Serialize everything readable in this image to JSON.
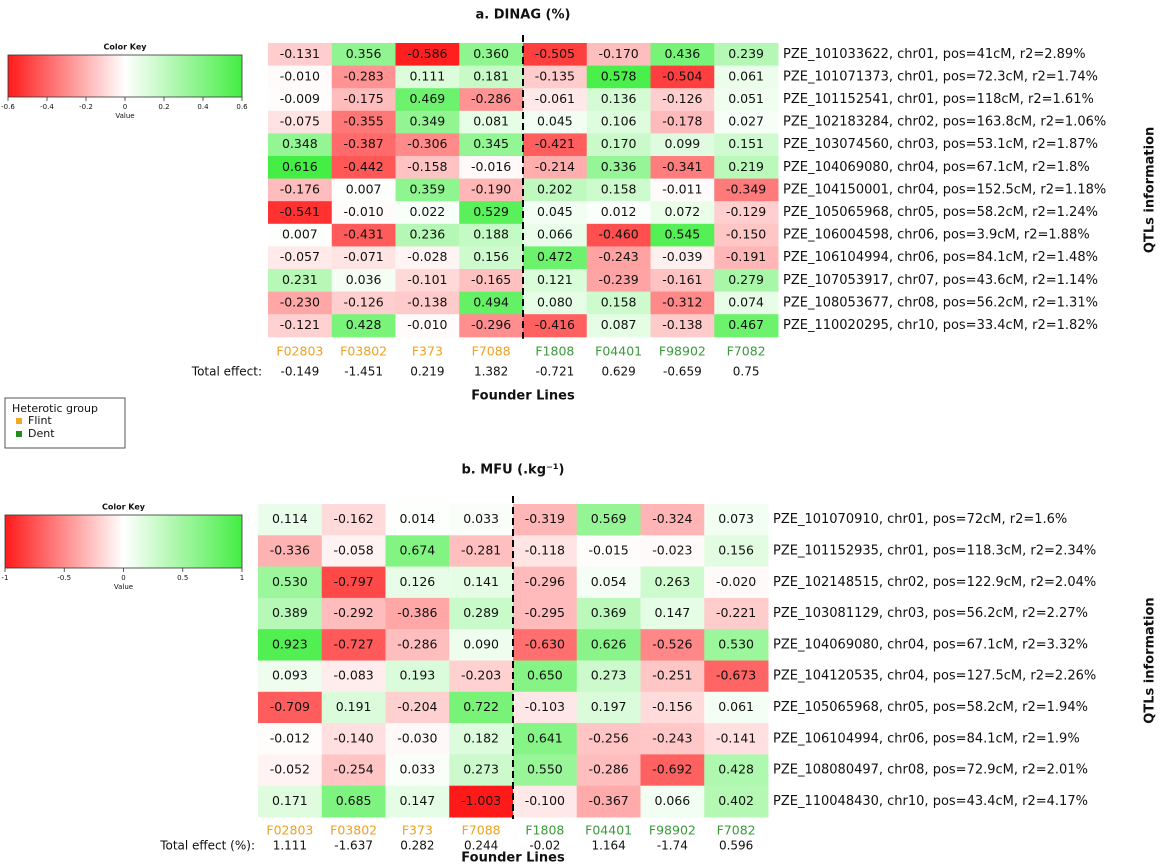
{
  "chart_data": [
    {
      "type": "heatmap",
      "title": "a. DINAG (%)",
      "columns": [
        "F02803",
        "F03802",
        "F373",
        "F7088",
        "F1808",
        "F04401",
        "F98902",
        "F7082"
      ],
      "column_colors": [
        "#f0a020",
        "#f0a020",
        "#f0a020",
        "#f0a020",
        "#3a9a3a",
        "#3a9a3a",
        "#3a9a3a",
        "#3a9a3a"
      ],
      "rows": [
        "PZE_101033622, chr01, pos=41cM, r2=2.89%",
        "PZE_101071373, chr01, pos=72.3cM, r2=1.74%",
        "PZE_101152541, chr01, pos=118cM, r2=1.61%",
        "PZE_102183284, chr02, pos=163.8cM, r2=1.06%",
        "PZE_103074560, chr03, pos=53.1cM, r2=1.87%",
        "PZE_104069080, chr04, pos=67.1cM, r2=1.8%",
        "PZE_104150001, chr04, pos=152.5cM, r2=1.18%",
        "PZE_105065968, chr05, pos=58.2cM, r2=1.24%",
        "PZE_106004598, chr06, pos=3.9cM, r2=1.88%",
        "PZE_106104994, chr06, pos=84.1cM, r2=1.48%",
        "PZE_107053917, chr07, pos=43.6cM, r2=1.14%",
        "PZE_108053677, chr08, pos=56.2cM, r2=1.31%",
        "PZE_110020295, chr10, pos=33.4cM, r2=1.82%"
      ],
      "values": [
        [
          -0.131,
          0.356,
          -0.586,
          0.36,
          -0.505,
          -0.17,
          0.436,
          0.239
        ],
        [
          -0.01,
          -0.283,
          0.111,
          0.181,
          -0.135,
          0.578,
          -0.504,
          0.061
        ],
        [
          -0.009,
          -0.175,
          0.469,
          -0.286,
          -0.061,
          0.136,
          -0.126,
          0.051
        ],
        [
          -0.075,
          -0.355,
          0.349,
          0.081,
          0.045,
          0.106,
          -0.178,
          0.027
        ],
        [
          0.348,
          -0.387,
          -0.306,
          0.345,
          -0.421,
          0.17,
          0.099,
          0.151
        ],
        [
          0.616,
          -0.442,
          -0.158,
          -0.016,
          -0.214,
          0.336,
          -0.341,
          0.219
        ],
        [
          -0.176,
          0.007,
          0.359,
          -0.19,
          0.202,
          0.158,
          -0.011,
          -0.349
        ],
        [
          -0.541,
          -0.01,
          0.022,
          0.529,
          0.045,
          0.012,
          0.072,
          -0.129
        ],
        [
          0.007,
          -0.431,
          0.236,
          0.188,
          0.066,
          -0.46,
          0.545,
          -0.15
        ],
        [
          -0.057,
          -0.071,
          -0.028,
          0.156,
          0.472,
          -0.243,
          -0.039,
          -0.191
        ],
        [
          0.231,
          0.036,
          -0.101,
          -0.165,
          0.121,
          -0.239,
          -0.161,
          0.279
        ],
        [
          -0.23,
          -0.126,
          -0.138,
          0.494,
          0.08,
          0.158,
          -0.312,
          0.074
        ],
        [
          -0.121,
          0.428,
          -0.01,
          -0.296,
          -0.416,
          0.087,
          -0.138,
          0.467
        ]
      ],
      "value_labels": [
        [
          "-0.131",
          "0.356",
          "-0.586",
          "0.360",
          "-0.505",
          "-0.170",
          "0.436",
          "0.239"
        ],
        [
          "-0.010",
          "-0.283",
          "0.111",
          "0.181",
          "-0.135",
          "0.578",
          "-0.504",
          "0.061"
        ],
        [
          "-0.009",
          "-0.175",
          "0.469",
          "-0.286",
          "-0.061",
          "0.136",
          "-0.126",
          "0.051"
        ],
        [
          "-0.075",
          "-0.355",
          "0.349",
          "0.081",
          "0.045",
          "0.106",
          "-0.178",
          "0.027"
        ],
        [
          "0.348",
          "-0.387",
          "-0.306",
          "0.345",
          "-0.421",
          "0.170",
          "0.099",
          "0.151"
        ],
        [
          "0.616",
          "-0.442",
          "-0.158",
          "-0.016",
          "-0.214",
          "0.336",
          "-0.341",
          "0.219"
        ],
        [
          "-0.176",
          "0.007",
          "0.359",
          "-0.190",
          "0.202",
          "0.158",
          "-0.011",
          "-0.349"
        ],
        [
          "-0.541",
          "-0.010",
          "0.022",
          "0.529",
          "0.045",
          "0.012",
          "0.072",
          "-0.129"
        ],
        [
          "0.007",
          "-0.431",
          "0.236",
          "0.188",
          "0.066",
          "-0.460",
          "0.545",
          "-0.150"
        ],
        [
          "-0.057",
          "-0.071",
          "-0.028",
          "0.156",
          "0.472",
          "-0.243",
          "-0.039",
          "-0.191"
        ],
        [
          "0.231",
          "0.036",
          "-0.101",
          "-0.165",
          "0.121",
          "-0.239",
          "-0.161",
          "0.279"
        ],
        [
          "-0.230",
          "-0.126",
          "-0.138",
          "0.494",
          "0.080",
          "0.158",
          "-0.312",
          "0.074"
        ],
        [
          "-0.121",
          "0.428",
          "-0.010",
          "-0.296",
          "-0.416",
          "0.087",
          "-0.138",
          "0.467"
        ]
      ],
      "total_label": "Total effect:",
      "totals": [
        -0.149,
        -1.451,
        0.219,
        1.382,
        -0.721,
        0.629,
        -0.659,
        0.75
      ],
      "xlabel": "Founder Lines",
      "ylabel": "QTLs information",
      "colormap": [
        "#ff1a1a",
        "#ffffff",
        "#44ee44"
      ],
      "key_title": "Color Key",
      "key_label": "Value",
      "key_lim": [
        -0.6,
        0.6
      ],
      "key_ticks": [
        -0.6,
        -0.4,
        -0.2,
        0,
        0.2,
        0.4,
        0.6
      ]
    },
    {
      "type": "heatmap",
      "title": "b. MFU (.kg⁻¹)",
      "columns": [
        "F02803",
        "F03802",
        "F373",
        "F7088",
        "F1808",
        "F04401",
        "F98902",
        "F7082"
      ],
      "column_colors": [
        "#f0a020",
        "#f0a020",
        "#f0a020",
        "#f0a020",
        "#3a9a3a",
        "#3a9a3a",
        "#3a9a3a",
        "#3a9a3a"
      ],
      "rows": [
        "PZE_101070910, chr01, pos=72cM, r2=1.6%",
        "PZE_101152935, chr01, pos=118.3cM, r2=2.34%",
        "PZE_102148515, chr02, pos=122.9cM, r2=2.04%",
        "PZE_103081129, chr03, pos=56.2cM, r2=2.27%",
        "PZE_104069080, chr04, pos=67.1cM, r2=3.32%",
        "PZE_104120535, chr04, pos=127.5cM, r2=2.26%",
        "PZE_105065968, chr05, pos=58.2cM, r2=1.94%",
        "PZE_106104994, chr06, pos=84.1cM, r2=1.9%",
        "PZE_108080497, chr08, pos=72.9cM, r2=2.01%",
        "PZE_110048430, chr10, pos=43.4cM, r2=4.17%"
      ],
      "values": [
        [
          0.114,
          -0.162,
          0.014,
          0.033,
          -0.319,
          0.569,
          -0.324,
          0.073
        ],
        [
          -0.336,
          -0.058,
          0.674,
          -0.281,
          -0.118,
          -0.015,
          -0.023,
          0.156
        ],
        [
          0.53,
          -0.797,
          0.126,
          0.141,
          -0.296,
          0.054,
          0.263,
          -0.02
        ],
        [
          0.389,
          -0.292,
          -0.386,
          0.289,
          -0.295,
          0.369,
          0.147,
          -0.221
        ],
        [
          0.923,
          -0.727,
          -0.286,
          0.09,
          -0.63,
          0.626,
          -0.526,
          0.53
        ],
        [
          0.093,
          -0.083,
          0.193,
          -0.203,
          0.65,
          0.273,
          -0.251,
          -0.673
        ],
        [
          -0.709,
          0.191,
          -0.204,
          0.722,
          -0.103,
          0.197,
          -0.156,
          0.061
        ],
        [
          -0.012,
          -0.14,
          -0.03,
          0.182,
          0.641,
          -0.256,
          -0.243,
          -0.141
        ],
        [
          -0.052,
          -0.254,
          0.033,
          0.273,
          0.55,
          -0.286,
          -0.692,
          0.428
        ],
        [
          0.171,
          0.685,
          0.147,
          -1.003,
          -0.1,
          -0.367,
          0.066,
          0.402
        ]
      ],
      "value_labels": [
        [
          "0.114",
          "-0.162",
          "0.014",
          "0.033",
          "-0.319",
          "0.569",
          "-0.324",
          "0.073"
        ],
        [
          "-0.336",
          "-0.058",
          "0.674",
          "-0.281",
          "-0.118",
          "-0.015",
          "-0.023",
          "0.156"
        ],
        [
          "0.530",
          "-0.797",
          "0.126",
          "0.141",
          "-0.296",
          "0.054",
          "0.263",
          "-0.020"
        ],
        [
          "0.389",
          "-0.292",
          "-0.386",
          "0.289",
          "-0.295",
          "0.369",
          "0.147",
          "-0.221"
        ],
        [
          "0.923",
          "-0.727",
          "-0.286",
          "0.090",
          "-0.630",
          "0.626",
          "-0.526",
          "0.530"
        ],
        [
          "0.093",
          "-0.083",
          "0.193",
          "-0.203",
          "0.650",
          "0.273",
          "-0.251",
          "-0.673"
        ],
        [
          "-0.709",
          "0.191",
          "-0.204",
          "0.722",
          "-0.103",
          "0.197",
          "-0.156",
          "0.061"
        ],
        [
          "-0.012",
          "-0.140",
          "-0.030",
          "0.182",
          "0.641",
          "-0.256",
          "-0.243",
          "-0.141"
        ],
        [
          "-0.052",
          "-0.254",
          "0.033",
          "0.273",
          "0.550",
          "-0.286",
          "-0.692",
          "0.428"
        ],
        [
          "0.171",
          "0.685",
          "0.147",
          "-1.003",
          "-0.100",
          "-0.367",
          "0.066",
          "0.402"
        ]
      ],
      "total_label": "Total effect (%):",
      "totals": [
        1.111,
        -1.637,
        0.282,
        0.244,
        -0.02,
        1.164,
        -1.74,
        0.596
      ],
      "xlabel": "Founder Lines",
      "ylabel": "QTLs information",
      "colormap": [
        "#ff1a1a",
        "#ffffff",
        "#44ee44"
      ],
      "key_title": "Color Key",
      "key_label": "Value",
      "key_lim": [
        -1,
        1
      ],
      "key_ticks": [
        -1,
        -0.5,
        0,
        0.5,
        1
      ]
    }
  ],
  "legend": {
    "title": "Heterotic group",
    "items": [
      {
        "name": "Flint",
        "color": "#f5a623"
      },
      {
        "name": "Dent",
        "color": "#1f8f1f"
      }
    ]
  }
}
